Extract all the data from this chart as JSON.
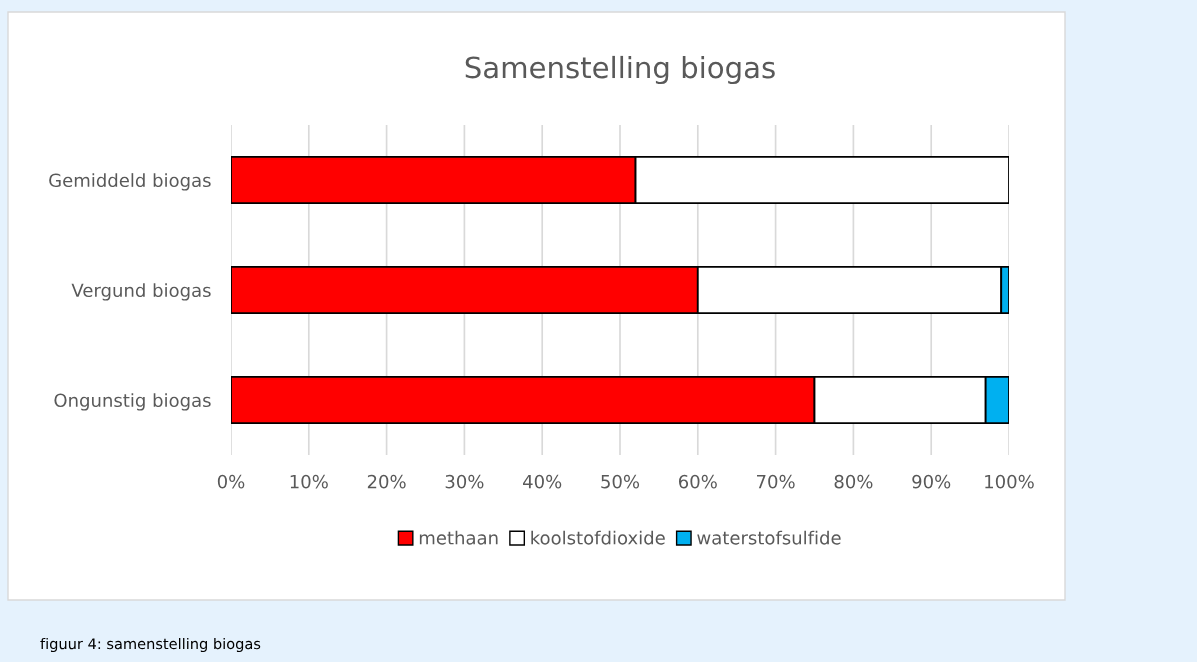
{
  "chart_data": {
    "type": "bar",
    "orientation": "horizontal",
    "stacked": true,
    "title": "Samenstelling biogas",
    "categories": [
      "Gemiddeld biogas",
      "Vergund biogas",
      "Ongunstig biogas"
    ],
    "series": [
      {
        "name": "methaan",
        "color": "#ff0000",
        "values": [
          52,
          60,
          75
        ]
      },
      {
        "name": "koolstofdioxide",
        "color": "#ffffff",
        "values": [
          48,
          39,
          22
        ]
      },
      {
        "name": "waterstofsulfide",
        "color": "#00b0f0",
        "values": [
          null,
          1,
          3
        ]
      }
    ],
    "xlim": [
      0,
      100
    ],
    "xticks": [
      {
        "value": 0,
        "label": "0%"
      },
      {
        "value": 10,
        "label": "10%"
      },
      {
        "value": 20,
        "label": "20%"
      },
      {
        "value": 30,
        "label": "30%"
      },
      {
        "value": 40,
        "label": "40%"
      },
      {
        "value": 50,
        "label": "50%"
      },
      {
        "value": 60,
        "label": "60%"
      },
      {
        "value": 70,
        "label": "70%"
      },
      {
        "value": 80,
        "label": "80%"
      },
      {
        "value": 90,
        "label": "90%"
      },
      {
        "value": 100,
        "label": "100%"
      }
    ],
    "grid": "x",
    "legend": "bottom",
    "annotations": [
      "figuur 4: samenstelling biogas"
    ]
  }
}
